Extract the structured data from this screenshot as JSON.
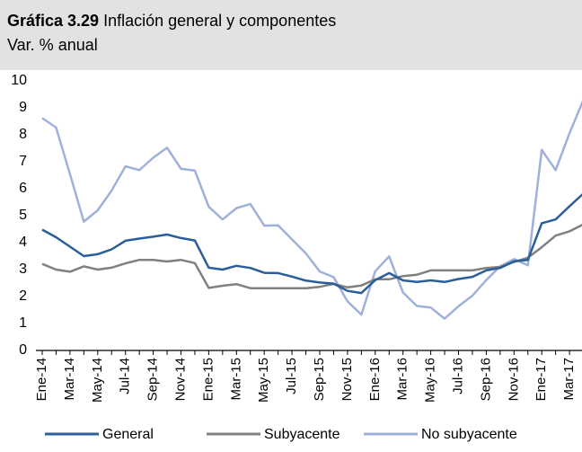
{
  "chart_data": {
    "type": "line",
    "title_number": "Gráfica 3.29",
    "title": "Inflación general y componentes",
    "subtitle": "Var. % anual",
    "categories": [
      "Ene-14",
      null,
      "Mar-14",
      null,
      "May-14",
      null,
      "Jul-14",
      null,
      "Sep-14",
      null,
      "Nov-14",
      null,
      "Ene-15",
      null,
      "Mar-15",
      null,
      "May-15",
      null,
      "Jul-15",
      null,
      "Sep-15",
      null,
      "Nov-15",
      null,
      "Ene-16",
      null,
      "Mar-16",
      null,
      "May-16",
      null,
      "Jul-16",
      null,
      "Sep-16",
      null,
      "Nov-16",
      null,
      "Ene-17",
      null,
      "Mar-17",
      null
    ],
    "series": [
      {
        "name": "General",
        "color": "#2a5e9a",
        "values": [
          4.48,
          4.2,
          3.85,
          3.5,
          3.57,
          3.75,
          4.07,
          4.15,
          4.22,
          4.3,
          4.17,
          4.08,
          3.07,
          3.0,
          3.14,
          3.06,
          2.88,
          2.87,
          2.74,
          2.59,
          2.52,
          2.48,
          2.21,
          2.13,
          2.61,
          2.87,
          2.6,
          2.54,
          2.6,
          2.54,
          2.65,
          2.73,
          2.97,
          3.06,
          3.31,
          3.36,
          4.72,
          4.86,
          5.35,
          5.82
        ]
      },
      {
        "name": "Subyacente",
        "color": "#808080",
        "values": [
          3.21,
          3.0,
          2.92,
          3.12,
          3.0,
          3.07,
          3.23,
          3.36,
          3.36,
          3.3,
          3.36,
          3.24,
          2.32,
          2.4,
          2.46,
          2.31,
          2.31,
          2.31,
          2.31,
          2.31,
          2.36,
          2.47,
          2.34,
          2.41,
          2.64,
          2.64,
          2.76,
          2.81,
          2.97,
          2.97,
          2.97,
          2.97,
          3.06,
          3.1,
          3.28,
          3.44,
          3.83,
          4.26,
          4.42,
          4.68
        ]
      },
      {
        "name": "No subyacente",
        "color": "#9fb1d9",
        "values": [
          8.62,
          8.27,
          6.54,
          4.78,
          5.2,
          5.93,
          6.83,
          6.69,
          7.15,
          7.52,
          6.74,
          6.67,
          5.33,
          4.86,
          5.28,
          5.43,
          4.63,
          4.64,
          4.12,
          3.6,
          2.93,
          2.72,
          1.82,
          1.33,
          2.94,
          3.49,
          2.15,
          1.65,
          1.59,
          1.18,
          1.64,
          2.03,
          2.61,
          3.12,
          3.39,
          3.16,
          7.44,
          6.69,
          8.06,
          9.29
        ]
      }
    ],
    "ylim": [
      0,
      10
    ],
    "yticks": [
      0,
      1,
      2,
      3,
      4,
      5,
      6,
      7,
      8,
      9,
      10
    ]
  }
}
